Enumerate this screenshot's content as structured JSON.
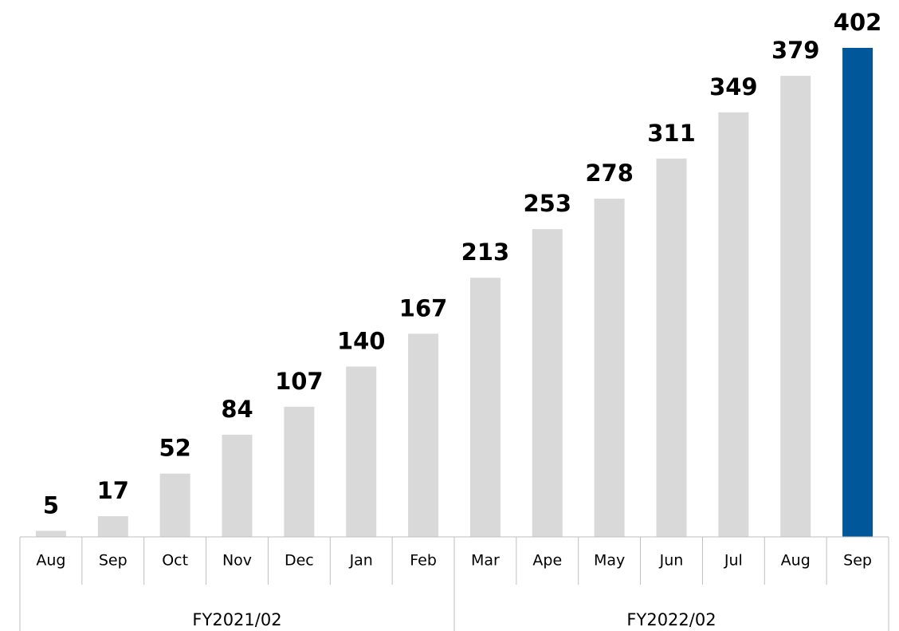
{
  "chart_data": {
    "type": "bar",
    "groups": [
      {
        "label": "FY2021/02",
        "categories": [
          "Aug",
          "Sep",
          "Oct",
          "Nov",
          "Dec",
          "Jan",
          "Feb"
        ]
      },
      {
        "label": "FY2022/02",
        "categories": [
          "Mar",
          "Ape",
          "May",
          "Jun",
          "Jul",
          "Aug",
          "Sep"
        ]
      }
    ],
    "values": [
      5,
      17,
      52,
      84,
      107,
      140,
      167,
      213,
      253,
      278,
      311,
      349,
      379,
      402
    ],
    "colors": [
      "#d9d9d9",
      "#d9d9d9",
      "#d9d9d9",
      "#d9d9d9",
      "#d9d9d9",
      "#d9d9d9",
      "#d9d9d9",
      "#d9d9d9",
      "#d9d9d9",
      "#d9d9d9",
      "#d9d9d9",
      "#d9d9d9",
      "#d9d9d9",
      "#00579a"
    ]
  }
}
